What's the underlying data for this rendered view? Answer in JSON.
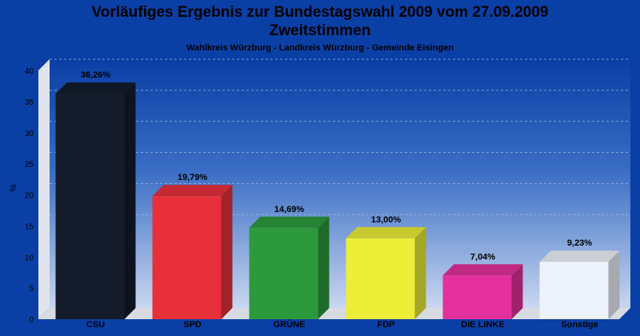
{
  "title_line1": "Vorläufiges Ergebnis zur Bundestagswahl 2009 vom 27.09.2009",
  "title_line2": "Zweitstimmen",
  "subtitle": "Wahlkreis Würzburg - Landkreis Würzburg - Gemeinde Eisingen",
  "colors": {
    "background": "#0a3fa6",
    "plot_top": "#0a3fa6",
    "plot_bottom": "#c9d7f0"
  },
  "chart_data": {
    "type": "bar",
    "title": "Vorläufiges Ergebnis zur Bundestagswahl 2009 vom 27.09.2009",
    "subtitle": "Wahlkreis Würzburg - Landkreis Würzburg - Gemeinde Eisingen",
    "ylabel": "%",
    "ylim": [
      0,
      40
    ],
    "yticks": [
      0,
      5,
      10,
      15,
      20,
      25,
      30,
      35,
      40
    ],
    "grid": true,
    "categories": [
      "CSU",
      "SPD",
      "GRÜNE",
      "FDP",
      "DIE LINKE",
      "Sonstige"
    ],
    "values": [
      36.26,
      19.79,
      14.69,
      13.0,
      7.04,
      9.23
    ],
    "labels": [
      "36,26%",
      "19,79%",
      "14,69%",
      "13,00%",
      "7,04%",
      "9,23%"
    ],
    "bar_colors": [
      "#141c2c",
      "#e8303a",
      "#2c9a3c",
      "#ecee38",
      "#e4309c",
      "#eef2fb"
    ]
  }
}
